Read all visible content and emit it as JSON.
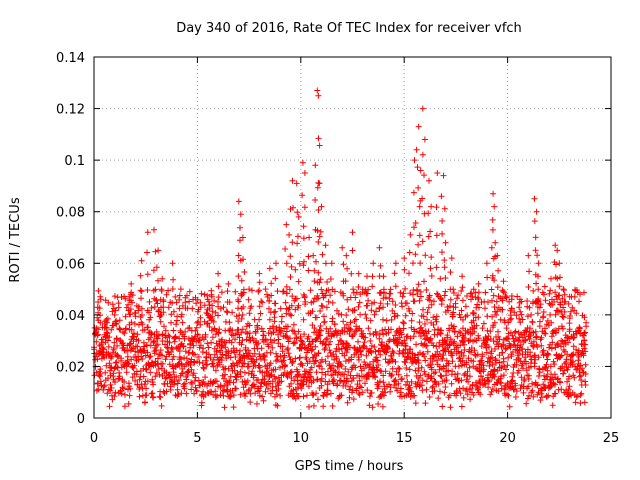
{
  "chart_data": {
    "type": "scatter",
    "title": "Day 340 of 2016, Rate Of TEC Index for receiver vfch",
    "xlabel": "GPS time / hours",
    "ylabel": "ROTI / TECUs",
    "xlim": [
      0,
      25
    ],
    "ylim": [
      0,
      0.14
    ],
    "x_ticks": [
      0,
      5,
      10,
      15,
      20,
      25
    ],
    "x_tick_labels": [
      "0",
      "5",
      "10",
      "15",
      "20",
      "25"
    ],
    "y_ticks": [
      0,
      0.02,
      0.04,
      0.06,
      0.08,
      0.1,
      0.12,
      0.14
    ],
    "y_tick_labels": [
      "0",
      "0.02",
      "0.04",
      "0.06",
      "0.08",
      "0.1",
      "0.12",
      "0.14"
    ],
    "grid": true,
    "marker": "+",
    "color": "#ff0000",
    "x_range_of_data": [
      0,
      23.8
    ],
    "series": [
      {
        "name": "ROTI",
        "points": [
          [
            0.2,
            0.045
          ],
          [
            0.3,
            0.047
          ],
          [
            0.6,
            0.038
          ],
          [
            1.0,
            0.04
          ],
          [
            1.7,
            0.047
          ],
          [
            1.8,
            0.052
          ],
          [
            2.3,
            0.061
          ],
          [
            2.6,
            0.072
          ],
          [
            2.9,
            0.073
          ],
          [
            3.1,
            0.065
          ],
          [
            3.3,
            0.054
          ],
          [
            3.8,
            0.06
          ],
          [
            4.2,
            0.05
          ],
          [
            5.5,
            0.046
          ],
          [
            5.7,
            0.047
          ],
          [
            6.0,
            0.056
          ],
          [
            6.5,
            0.052
          ],
          [
            7.0,
            0.084
          ],
          [
            7.1,
            0.079
          ],
          [
            7.2,
            0.07
          ],
          [
            7.5,
            0.05
          ],
          [
            8.0,
            0.056
          ],
          [
            8.5,
            0.058
          ],
          [
            8.8,
            0.06
          ],
          [
            9.3,
            0.075
          ],
          [
            9.5,
            0.081
          ],
          [
            9.6,
            0.092
          ],
          [
            9.8,
            0.091
          ],
          [
            9.9,
            0.078
          ],
          [
            10.1,
            0.099
          ],
          [
            10.2,
            0.095
          ],
          [
            10.4,
            0.07
          ],
          [
            10.6,
            0.063
          ],
          [
            10.8,
            0.127
          ],
          [
            10.85,
            0.125
          ],
          [
            10.7,
            0.098
          ],
          [
            10.9,
            0.091
          ],
          [
            11.0,
            0.082
          ],
          [
            11.2,
            0.067
          ],
          [
            11.5,
            0.06
          ],
          [
            12.0,
            0.066
          ],
          [
            12.2,
            0.063
          ],
          [
            12.5,
            0.072
          ],
          [
            12.8,
            0.056
          ],
          [
            13.2,
            0.055
          ],
          [
            13.5,
            0.06
          ],
          [
            13.8,
            0.066
          ],
          [
            14.0,
            0.055
          ],
          [
            14.6,
            0.06
          ],
          [
            15.0,
            0.062
          ],
          [
            15.3,
            0.071
          ],
          [
            15.5,
            0.1
          ],
          [
            15.6,
            0.104
          ],
          [
            15.7,
            0.113
          ],
          [
            15.8,
            0.096
          ],
          [
            15.9,
            0.12
          ],
          [
            16.0,
            0.108
          ],
          [
            16.2,
            0.092
          ],
          [
            16.3,
            0.082
          ],
          [
            16.6,
            0.095
          ],
          [
            16.8,
            0.086
          ],
          [
            16.9,
            0.094
          ],
          [
            17.0,
            0.068
          ],
          [
            17.3,
            0.062
          ],
          [
            17.8,
            0.055
          ],
          [
            18.3,
            0.047
          ],
          [
            18.6,
            0.052
          ],
          [
            19.0,
            0.06
          ],
          [
            19.3,
            0.087
          ],
          [
            19.35,
            0.082
          ],
          [
            19.4,
            0.068
          ],
          [
            19.5,
            0.063
          ],
          [
            19.8,
            0.053
          ],
          [
            20.2,
            0.046
          ],
          [
            20.6,
            0.046
          ],
          [
            21.0,
            0.063
          ],
          [
            21.3,
            0.085
          ],
          [
            21.4,
            0.08
          ],
          [
            21.5,
            0.06
          ],
          [
            21.8,
            0.051
          ],
          [
            22.1,
            0.054
          ],
          [
            22.3,
            0.067
          ],
          [
            22.4,
            0.065
          ],
          [
            22.5,
            0.06
          ],
          [
            22.7,
            0.05
          ],
          [
            23.0,
            0.047
          ],
          [
            23.5,
            0.033
          ],
          [
            23.7,
            0.03
          ]
        ],
        "background_band": {
          "description": "dense cloud of points covering the full time range",
          "typical_range": [
            0.008,
            0.035
          ],
          "min_value": 0.004
        }
      }
    ]
  }
}
